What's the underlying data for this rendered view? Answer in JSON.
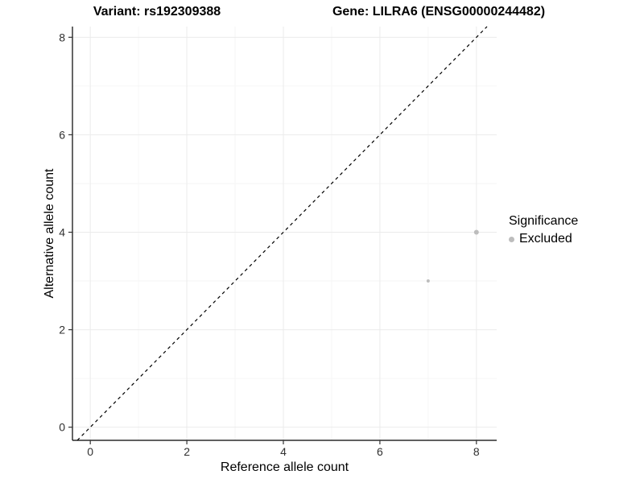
{
  "chart_data": {
    "type": "scatter",
    "title_left": "Variant: rs192309388",
    "title_right": "Gene: LILRA6 (ENSG00000244482)",
    "xlabel": "Reference allele count",
    "ylabel": "Alternative allele count",
    "xlim": [
      -0.37,
      8.42
    ],
    "ylim": [
      -0.27,
      8.22
    ],
    "xticks": [
      0,
      2,
      4,
      6,
      8
    ],
    "yticks": [
      0,
      2,
      4,
      6,
      8
    ],
    "minor_xticks": [
      1,
      3,
      5,
      7
    ],
    "minor_yticks": [
      1,
      3,
      5,
      7
    ],
    "grid": true,
    "identity_line": {
      "style": "dashed",
      "slope": 1,
      "intercept": 0,
      "color": "#000000"
    },
    "series": [
      {
        "name": "Excluded",
        "color": "#bdbdbd",
        "points": [
          {
            "x": 7,
            "y": 3,
            "r": 2
          },
          {
            "x": 8,
            "y": 4,
            "r": 3
          }
        ]
      }
    ],
    "legend": {
      "title": "Significance",
      "position": "right",
      "entries": [
        {
          "label": "Excluded",
          "color": "#bdbdbd"
        }
      ]
    },
    "colors": {
      "grid_major": "#ebebeb",
      "grid_minor": "#f6f6f6",
      "axis": "#000000",
      "tick_label": "#303030"
    }
  }
}
